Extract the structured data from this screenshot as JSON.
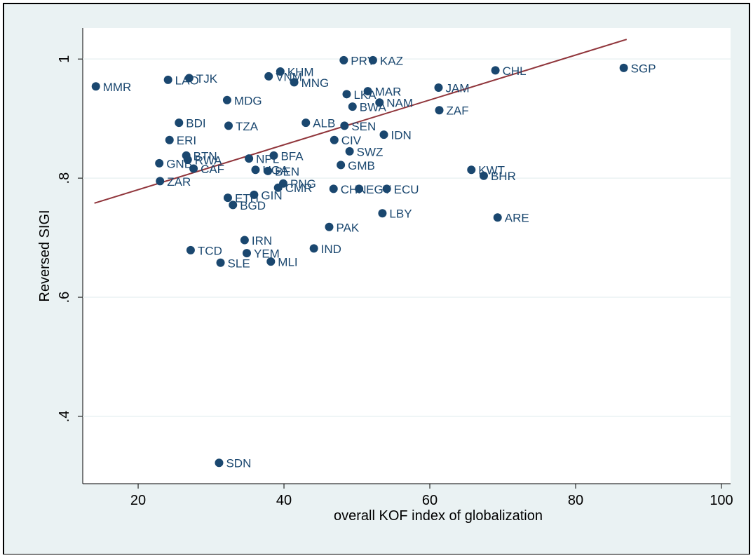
{
  "chart_data": {
    "type": "scatter",
    "x_label": "overall KOF index of globalization",
    "y_label": "Reversed SIGI",
    "xlim": [
      12.4,
      101.25
    ],
    "ylim": [
      0.287,
      1.052
    ],
    "xticks": [
      20,
      40,
      60,
      80,
      100
    ],
    "yticks": [
      {
        "value": 0.4,
        "label": ".4"
      },
      {
        "value": 0.6,
        "label": ".6"
      },
      {
        "value": 0.8,
        "label": ".8"
      },
      {
        "value": 1,
        "label": "1"
      }
    ],
    "grid": true,
    "color": "#1a476f",
    "labels": [
      "MMR",
      "LAO",
      "TJK",
      "VNM",
      "KHM",
      "MNG",
      "MDG",
      "BDI",
      "TZA",
      "ERI",
      "BTN",
      "RWA",
      "GNB",
      "NPL",
      "CAF",
      "ZAR",
      "BFA",
      "UGA",
      "BEN",
      "ALB",
      "SEN",
      "IDN",
      "CIV",
      "SWZ",
      "GMB",
      "PNG",
      "CMR",
      "ETH",
      "GIN",
      "BGD",
      "KWT",
      "BHR",
      "ARE",
      "LBY",
      "PAK",
      "IND",
      "IRN",
      "YEM",
      "TCD",
      "SLE",
      "MLI",
      "SDN",
      "SGP",
      "CHL",
      "JAM",
      "ZAF",
      "NAM",
      "BWA",
      "MAR",
      "LKA",
      "PRY",
      "KAZ",
      "CHN",
      "EGY",
      "ECU"
    ],
    "x": [
      14.2,
      24.1,
      27.0,
      37.9,
      39.5,
      41.4,
      32.2,
      25.6,
      32.4,
      24.3,
      26.6,
      26.8,
      22.9,
      35.2,
      27.6,
      23.0,
      38.6,
      36.1,
      37.8,
      43.0,
      48.3,
      53.7,
      46.9,
      49.0,
      47.8,
      39.9,
      39.2,
      32.3,
      35.9,
      33.0,
      65.7,
      67.4,
      69.3,
      53.5,
      46.2,
      44.1,
      34.6,
      34.9,
      27.2,
      31.3,
      38.2,
      31.1,
      86.6,
      69.0,
      61.2,
      61.3,
      53.1,
      49.4,
      51.5,
      48.6,
      48.2,
      52.2,
      46.8,
      50.3,
      54.1
    ],
    "y": [
      0.954,
      0.965,
      0.968,
      0.971,
      0.979,
      0.961,
      0.931,
      0.893,
      0.888,
      0.864,
      0.838,
      0.831,
      0.825,
      0.833,
      0.816,
      0.795,
      0.838,
      0.814,
      0.812,
      0.893,
      0.888,
      0.873,
      0.864,
      0.845,
      0.822,
      0.791,
      0.784,
      0.767,
      0.772,
      0.755,
      0.814,
      0.804,
      0.734,
      0.741,
      0.718,
      0.682,
      0.696,
      0.674,
      0.679,
      0.658,
      0.66,
      0.322,
      0.985,
      0.981,
      0.952,
      0.914,
      0.927,
      0.92,
      0.946,
      0.941,
      0.998,
      0.998,
      0.782,
      0.782,
      0.782
    ],
    "fit": {
      "color": "#90353b",
      "x": [
        14,
        87
      ],
      "y": [
        0.758,
        1.033
      ]
    }
  }
}
